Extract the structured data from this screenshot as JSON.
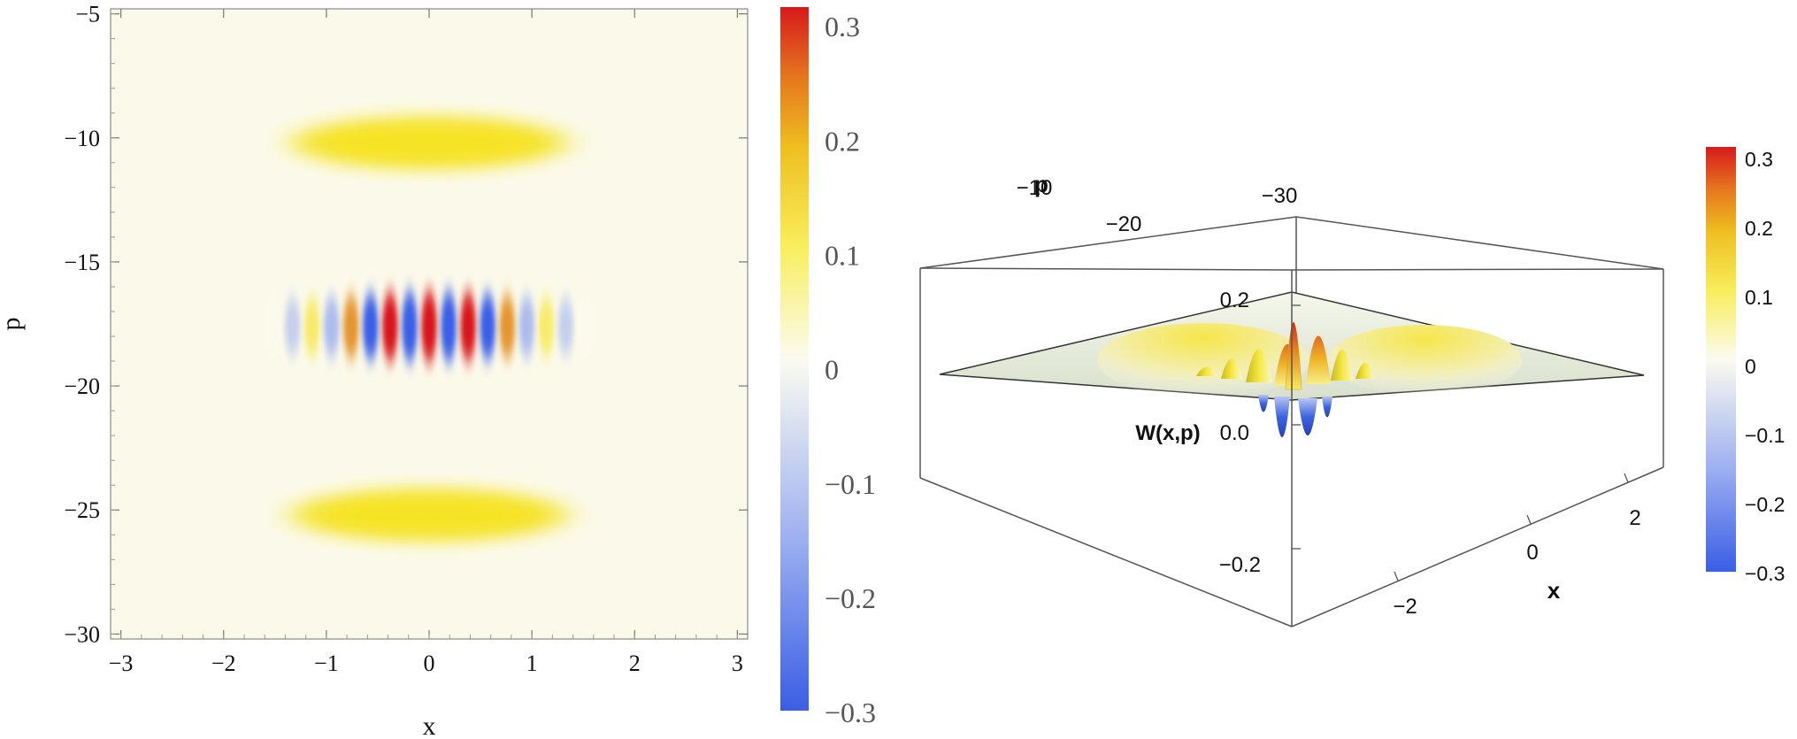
{
  "chart_data": [
    {
      "type": "heatmap",
      "title": "",
      "xlabel": "x",
      "ylabel": "p",
      "xlim": [
        -3.1,
        3.1
      ],
      "ylim": [
        -30.2,
        -4.8
      ],
      "x_ticks": [
        -3,
        -2,
        -1,
        0,
        1,
        2,
        3
      ],
      "y_ticks": [
        -5,
        -10,
        -15,
        -20,
        -25,
        -30
      ],
      "features": [
        {
          "kind": "gaussian",
          "x": 0,
          "p": -10.2,
          "peak": 0.12
        },
        {
          "kind": "gaussian",
          "x": 0,
          "p": -25.2,
          "peak": 0.12
        },
        {
          "kind": "interference",
          "x": 0,
          "p": -17.6,
          "peak": 0.31,
          "trough": -0.23
        }
      ],
      "colorbar": {
        "range": [
          -0.3,
          0.3
        ],
        "ticks": [
          "0.3",
          "0.2",
          "0.1",
          "0",
          "−0.1",
          "−0.2",
          "−0.3"
        ],
        "colors": {
          "min": "#3a5ee6",
          "zero": "#fbfbf0",
          "mid_high": "#f5e21c",
          "high": "#e28a1e",
          "max": "#d7191c"
        }
      }
    },
    {
      "type": "surface3d",
      "title": "",
      "xlabel": "x",
      "ylabel": "p",
      "zlabel": "W(x,p)",
      "x_ticks": [
        "−2",
        "0",
        "2"
      ],
      "p_ticks": [
        "−10",
        "−20",
        "−30"
      ],
      "z_ticks": [
        "0.2",
        "0.0",
        "−0.2"
      ],
      "colorbar": {
        "range": [
          -0.3,
          0.3
        ],
        "ticks": [
          "0.3",
          "0.2",
          "0.1",
          "0",
          "−0.1",
          "−0.2",
          "−0.3"
        ]
      }
    }
  ]
}
